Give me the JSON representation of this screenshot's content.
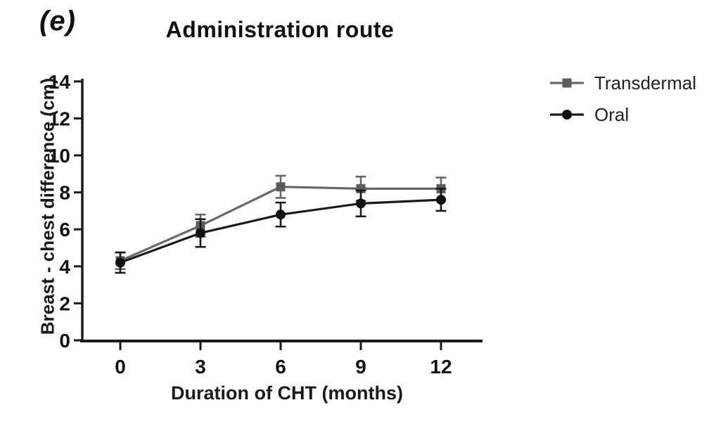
{
  "panel_label": "(e)",
  "title": "Administration route",
  "chart_data": {
    "type": "line",
    "x": [
      0,
      3,
      6,
      9,
      12
    ],
    "xticks": [
      0,
      3,
      6,
      9,
      12
    ],
    "yticks": [
      0,
      2,
      4,
      6,
      8,
      10,
      12,
      14
    ],
    "xlim": [
      0,
      13.5
    ],
    "ylim": [
      0,
      14
    ],
    "xlabel": "Duration of CHT (months)",
    "ylabel": "Breast - chest difference (cm)",
    "grid": false,
    "legend_position": "right",
    "series": [
      {
        "name": "Transdermal",
        "marker": "square",
        "color": "#686868",
        "marker_color": "#5c5c5c",
        "values": [
          4.3,
          6.2,
          8.3,
          8.2,
          8.2
        ],
        "errors": [
          0.45,
          0.6,
          0.6,
          0.65,
          0.6
        ]
      },
      {
        "name": "Oral",
        "marker": "circle",
        "color": "#1a1a1a",
        "marker_color": "#111111",
        "values": [
          4.2,
          5.8,
          6.8,
          7.4,
          7.6
        ],
        "errors": [
          0.55,
          0.75,
          0.65,
          0.7,
          0.6
        ]
      }
    ]
  },
  "legend": {
    "items": [
      "Transdermal",
      "Oral"
    ]
  }
}
